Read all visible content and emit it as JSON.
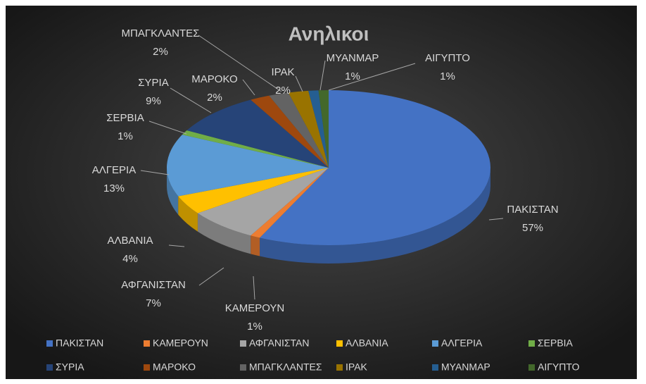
{
  "chart_data": {
    "type": "pie3d",
    "title": "Ανηλικοι",
    "categories": [
      "ΠΑΚΙΣΤΑΝ",
      "ΚΑΜΕΡΟΥΝ",
      "ΑΦΓΑΝΙΣΤΑΝ",
      "ΑΛΒΑΝΙΑ",
      "ΑΛΓΕΡΙΑ",
      "ΣΕΡΒΙΑ",
      "ΣΥΡΙΑ",
      "ΜΑΡΟΚΟ",
      "ΜΠΑΓΚΛΑΝΤΕΣ",
      "ΙΡΑΚ",
      "ΜΥΑΝΜΑΡ",
      "ΑΙΓΥΠΤΟ"
    ],
    "values": [
      57,
      1,
      7,
      4,
      13,
      1,
      9,
      2,
      2,
      2,
      1,
      1
    ],
    "value_labels": [
      "57%",
      "1%",
      "7%",
      "4%",
      "13%",
      "1%",
      "9%",
      "2%",
      "2%",
      "2%",
      "1%",
      "1%"
    ],
    "colors": [
      "#4472c4",
      "#ed7d31",
      "#a5a5a5",
      "#ffc000",
      "#5b9bd5",
      "#70ad47",
      "#264478",
      "#9e480e",
      "#636363",
      "#997300",
      "#255e91",
      "#43682b"
    ],
    "legend": "bottom"
  }
}
